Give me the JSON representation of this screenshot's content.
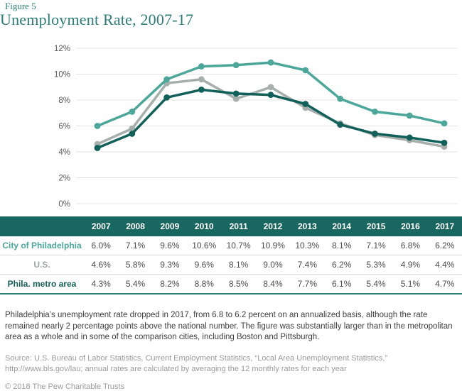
{
  "figure_label": "Figure 5",
  "title": "Unemployment Rate, 2007-17",
  "colors": {
    "accent_teal": "#2A7E76",
    "table_header_bg": "#186760",
    "gridline": "#E3E3E1",
    "tick_text": "#58595B",
    "value_text": "#4D4D4D"
  },
  "chart_data": {
    "type": "line",
    "title": "Unemployment Rate, 2007-17",
    "xlabel": "",
    "ylabel": "",
    "categories": [
      "2007",
      "2008",
      "2009",
      "2010",
      "2011",
      "2012",
      "2013",
      "2014",
      "2015",
      "2016",
      "2017"
    ],
    "series": [
      {
        "name": "City of Philadelphia",
        "color": "#4BA79A",
        "values": [
          6.0,
          7.1,
          9.6,
          10.6,
          10.7,
          10.9,
          10.3,
          8.1,
          7.1,
          6.8,
          6.2
        ]
      },
      {
        "name": "U.S.",
        "color": "#A6AFAB",
        "values": [
          4.6,
          5.8,
          9.3,
          9.6,
          8.1,
          9.0,
          7.4,
          6.2,
          5.3,
          4.9,
          4.4
        ]
      },
      {
        "name": "Phila. metro area",
        "color": "#11615A",
        "values": [
          4.3,
          5.4,
          8.2,
          8.8,
          8.5,
          8.4,
          7.7,
          6.1,
          5.4,
          5.1,
          4.7
        ]
      }
    ],
    "ylim": [
      0,
      12
    ],
    "y_tick_step": 2,
    "y_tick_labels": [
      "0%",
      "2%",
      "4%",
      "6%",
      "8%",
      "10%",
      "12%"
    ],
    "grid": true,
    "legend_position": "none"
  },
  "table": {
    "years": [
      "2007",
      "2008",
      "2009",
      "2010",
      "2011",
      "2012",
      "2013",
      "2014",
      "2015",
      "2016",
      "2017"
    ],
    "rows": [
      {
        "label": "City of Philadelphia",
        "label_color": "#4BA79A",
        "values": [
          "6.0%",
          "7.1%",
          "9.6%",
          "10.6%",
          "10.7%",
          "10.9%",
          "10.3%",
          "8.1%",
          "7.1%",
          "6.8%",
          "6.2%"
        ]
      },
      {
        "label": "U.S.",
        "label_color": "#9FA8A4",
        "values": [
          "4.6%",
          "5.8%",
          "9.3%",
          "9.6%",
          "8.1%",
          "9.0%",
          "7.4%",
          "6.2%",
          "5.3%",
          "4.9%",
          "4.4%"
        ]
      },
      {
        "label": "Phila. metro area",
        "label_color": "#135E57",
        "values": [
          "4.3%",
          "5.4%",
          "8.2%",
          "8.8%",
          "8.5%",
          "8.4%",
          "7.7%",
          "6.1%",
          "5.4%",
          "5.1%",
          "4.7%"
        ]
      }
    ]
  },
  "caption": "Philadelphia’s unemployment rate dropped in 2017, from 6.8 to 6.2 percent on an annualized basis, although the rate remained nearly 2 percentage points above the national number. The figure was substantially larger than in the metropolitan area as a whole and in some of the comparison cities, including Boston and Pittsburgh.",
  "source": "Source: U.S. Bureau of Labor Statistics, Current Employment Statistics, “Local Area Unemployment Statistics,” http://www.bls.gov/lau; annual rates are calculated by averaging the 12 monthly rates for each year",
  "copyright": "© 2018 The Pew Charitable Trusts"
}
